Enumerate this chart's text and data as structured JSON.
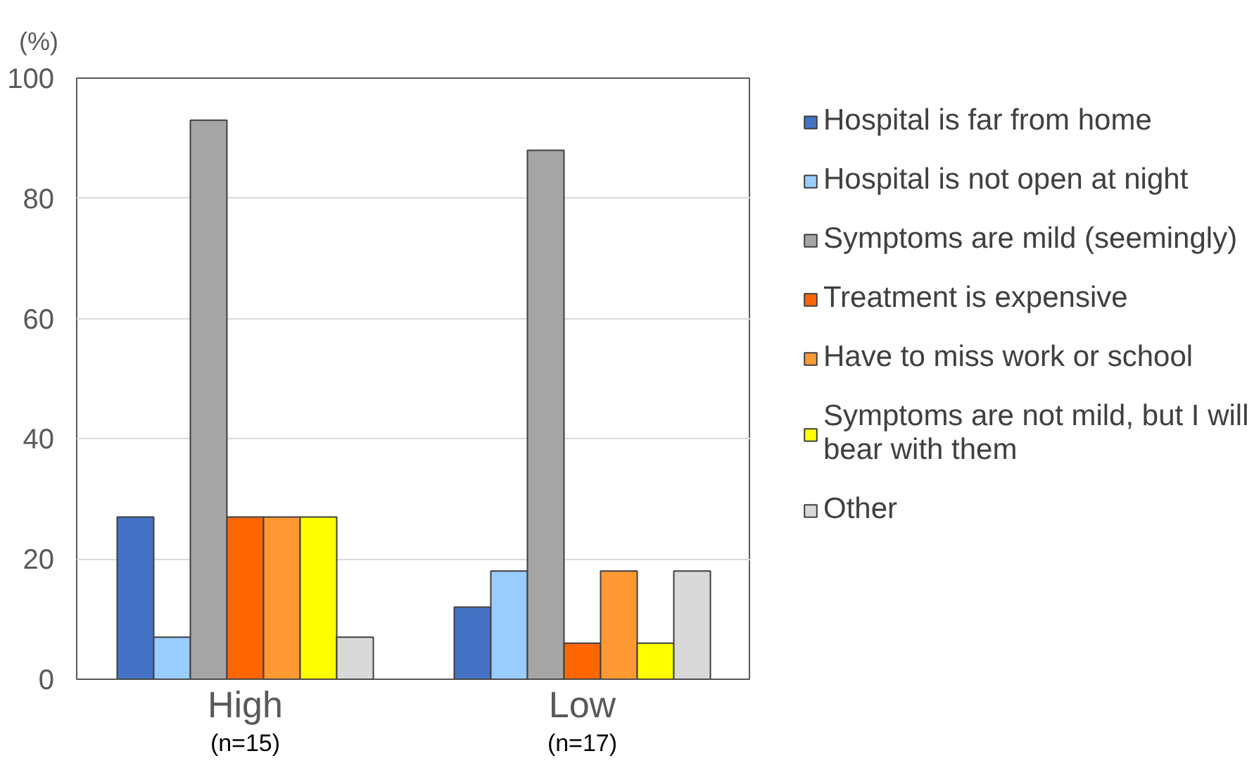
{
  "chart_data": {
    "type": "bar",
    "ylabel": "(%)",
    "categories": [
      "High\n(n=15)",
      "Low\n(n=17)"
    ],
    "series": [
      {
        "name": "Hospital is far from home",
        "color": "#4472c4",
        "values": [
          27,
          12
        ]
      },
      {
        "name": "Hospital is not open at night",
        "color": "#99ccff",
        "values": [
          7,
          18
        ]
      },
      {
        "name": "Symptoms are mild (seemingly)",
        "color": "#a5a5a5",
        "values": [
          93,
          88
        ]
      },
      {
        "name": "Treatment is expensive",
        "color": "#ff6600",
        "values": [
          27,
          6
        ]
      },
      {
        "name": "Have to miss work or school",
        "color": "#ff9933",
        "values": [
          27,
          18
        ]
      },
      {
        "name": "Symptoms are not mild, but I will bear with them",
        "color": "#ffff00",
        "values": [
          27,
          6
        ]
      },
      {
        "name": "Other",
        "color": "#d9d9d9",
        "values": [
          7,
          18
        ]
      }
    ],
    "ylim": [
      0,
      100
    ],
    "yticks": [
      0,
      20,
      40,
      60,
      80,
      100
    ],
    "grid": "y",
    "legend": "right"
  }
}
